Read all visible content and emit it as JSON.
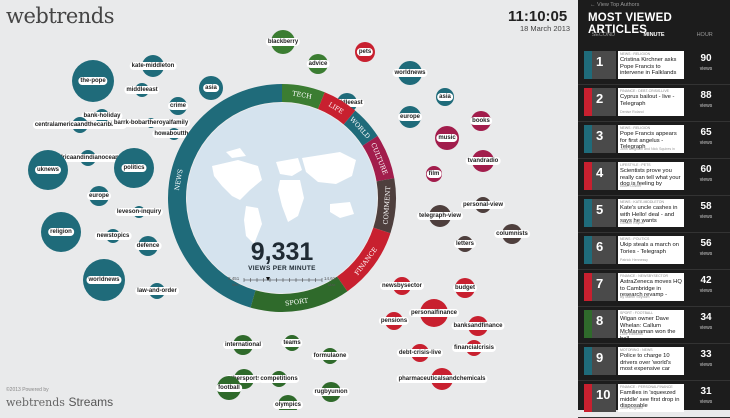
{
  "logo": "webtrends",
  "clock": {
    "time": "11:10:05",
    "date": "18 March 2013"
  },
  "footer": {
    "powered": "©2013 Powered by",
    "brand_a": "webtrends",
    "brand_b": "Streams"
  },
  "center": {
    "value": "9,331",
    "label": "VIEWS PER MINUTE",
    "min": "8,451",
    "min_unit": "Min",
    "max": "14,610",
    "max_unit": "Max"
  },
  "ring": [
    {
      "label": "NEWS",
      "color": "#1f6b7a"
    },
    {
      "label": "TECH",
      "color": "#3b7d32"
    },
    {
      "label": "LIFE",
      "color": "#c8202f"
    },
    {
      "label": "WORLD",
      "color": "#1f6b7a"
    },
    {
      "label": "CULTURE",
      "color": "#a21d4c"
    },
    {
      "label": "COMMENT",
      "color": "#4e3f3d"
    },
    {
      "label": "FINANCE",
      "color": "#c8202f"
    },
    {
      "label": "SPORT",
      "color": "#2f6a2b"
    }
  ],
  "bubbles": [
    {
      "label": "the-pope",
      "color": "#1f6b7a"
    },
    {
      "label": "kate-middleton",
      "color": "#1f6b7a"
    },
    {
      "label": "asia",
      "color": "#1f6b7a"
    },
    {
      "label": "middleeast",
      "color": "#1f6b7a"
    },
    {
      "label": "crime",
      "color": "#1f6b7a"
    },
    {
      "label": "bank-holiday",
      "color": "#1f6b7a"
    },
    {
      "label": "centralamericaandthecaribbean",
      "color": "#1f6b7a"
    },
    {
      "label": "barrk-bobartheroyalfamily",
      "color": "#1f6b7a"
    },
    {
      "label": "howaboutthat",
      "color": "#1f6b7a"
    },
    {
      "label": "africaandindianocean",
      "color": "#1f6b7a"
    },
    {
      "label": "uknews",
      "color": "#1f6b7a"
    },
    {
      "label": "politics",
      "color": "#1f6b7a"
    },
    {
      "label": "europe",
      "color": "#1f6b7a"
    },
    {
      "label": "leveson-inquiry",
      "color": "#1f6b7a"
    },
    {
      "label": "religion",
      "color": "#1f6b7a"
    },
    {
      "label": "newstopics",
      "color": "#1f6b7a"
    },
    {
      "label": "defence",
      "color": "#1f6b7a"
    },
    {
      "label": "worldnews",
      "color": "#1f6b7a"
    },
    {
      "label": "law-and-order",
      "color": "#1f6b7a"
    },
    {
      "label": "blackberry",
      "color": "#3b7d32"
    },
    {
      "label": "advice",
      "color": "#3b7d32"
    },
    {
      "label": "pets",
      "color": "#c8202f"
    },
    {
      "label": "worldnews",
      "color": "#1f6b7a"
    },
    {
      "label": "middleeast",
      "color": "#1f6b7a"
    },
    {
      "label": "asia",
      "color": "#1f6b7a"
    },
    {
      "label": "europe",
      "color": "#1f6b7a"
    },
    {
      "label": "books",
      "color": "#a21d4c"
    },
    {
      "label": "music",
      "color": "#a21d4c"
    },
    {
      "label": "tvandradio",
      "color": "#a21d4c"
    },
    {
      "label": "film",
      "color": "#a21d4c"
    },
    {
      "label": "telegraph-view",
      "color": "#4e3f3d"
    },
    {
      "label": "personal-view",
      "color": "#4e3f3d"
    },
    {
      "label": "letters",
      "color": "#4e3f3d"
    },
    {
      "label": "columnists",
      "color": "#4e3f3d"
    },
    {
      "label": "newsbysector",
      "color": "#c8202f"
    },
    {
      "label": "budget",
      "color": "#c8202f"
    },
    {
      "label": "pensions",
      "color": "#c8202f"
    },
    {
      "label": "personalfinance",
      "color": "#c8202f"
    },
    {
      "label": "banksandfinance",
      "color": "#c8202f"
    },
    {
      "label": "debt-crisis-live",
      "color": "#c8202f"
    },
    {
      "label": "financialcrisis",
      "color": "#c8202f"
    },
    {
      "label": "pharmaceuticalsandchemicals",
      "color": "#c8202f"
    },
    {
      "label": "international",
      "color": "#2f6a2b"
    },
    {
      "label": "teams",
      "color": "#2f6a2b"
    },
    {
      "label": "formulaone",
      "color": "#2f6a2b"
    },
    {
      "label": "othersports",
      "color": "#2f6a2b"
    },
    {
      "label": "competitions",
      "color": "#2f6a2b"
    },
    {
      "label": "football",
      "color": "#2f6a2b"
    },
    {
      "label": "rugbyunion",
      "color": "#2f6a2b"
    },
    {
      "label": "olympics",
      "color": "#2f6a2b"
    }
  ],
  "panel": {
    "view_top": "← View Top Authors",
    "title": "MOST VIEWED ARTICLES",
    "tabs": [
      "SECOND",
      "MINUTE",
      "HOUR"
    ],
    "active_tab": 1,
    "views_label": "views",
    "articles": [
      {
        "rank": "1",
        "cat": "NEWS : RELIGION",
        "title": "Cristina Kirchner asks Pope Francis to intervene in Falklands",
        "author": "",
        "views": "90",
        "color": "#1f6b7a"
      },
      {
        "rank": "2",
        "cat": "FINANCE : DEBT-CRISIS-LIVE",
        "title": "Cyprus bailout - live - Telegraph",
        "author": "Denise Roland",
        "views": "88",
        "color": "#c8202f"
      },
      {
        "rank": "3",
        "cat": "NEWS : RELIGION",
        "title": "Pope Francis appears for first angelus - Telegraph",
        "author": "John Bingham and Nick Squires in",
        "views": "65",
        "color": "#1f6b7a"
      },
      {
        "rank": "4",
        "cat": "LIFESTYLE : PETS",
        "title": "Scientists prove you really can tell what your dog is feeling by",
        "author": "Adam Lusher",
        "views": "60",
        "color": "#c8202f"
      },
      {
        "rank": "5",
        "cat": "NEWS : KATE-MIDDLETON",
        "title": "Kate's uncle cashes in with Hello! deal - and says he wants",
        "author": "Gordon Rayner",
        "views": "58",
        "color": "#1f6b7a"
      },
      {
        "rank": "6",
        "cat": "NEWS : POLITICS",
        "title": "Ukip steals a march on Tories - Telegraph",
        "author": "Patrick Hennessy",
        "views": "56",
        "color": "#1f6b7a"
      },
      {
        "rank": "7",
        "cat": "FINANCE : NEWSBYSECTOR",
        "title": "AstraZeneca moves HQ to Cambridge in research revamp -",
        "author": "By Martin Strydom",
        "views": "42",
        "color": "#c8202f"
      },
      {
        "rank": "8",
        "cat": "SPORT : FOOTBALL",
        "title": "Wigan owner Dave Whelan: Callum McManaman won the ball",
        "author": "Luke Edwards",
        "views": "34",
        "color": "#2f6a2b"
      },
      {
        "rank": "9",
        "cat": "MOTORING : NEWS",
        "title": "Police to charge 10 drivers over 'world's most expensive car",
        "author": "",
        "views": "33",
        "color": "#1f6b7a"
      },
      {
        "rank": "10",
        "cat": "FINANCE : PERSONALFINANCE",
        "title": "Families in 'squeezed middle' see first drop in disposable",
        "author": "John Bingham",
        "views": "31",
        "color": "#c8202f"
      }
    ]
  }
}
